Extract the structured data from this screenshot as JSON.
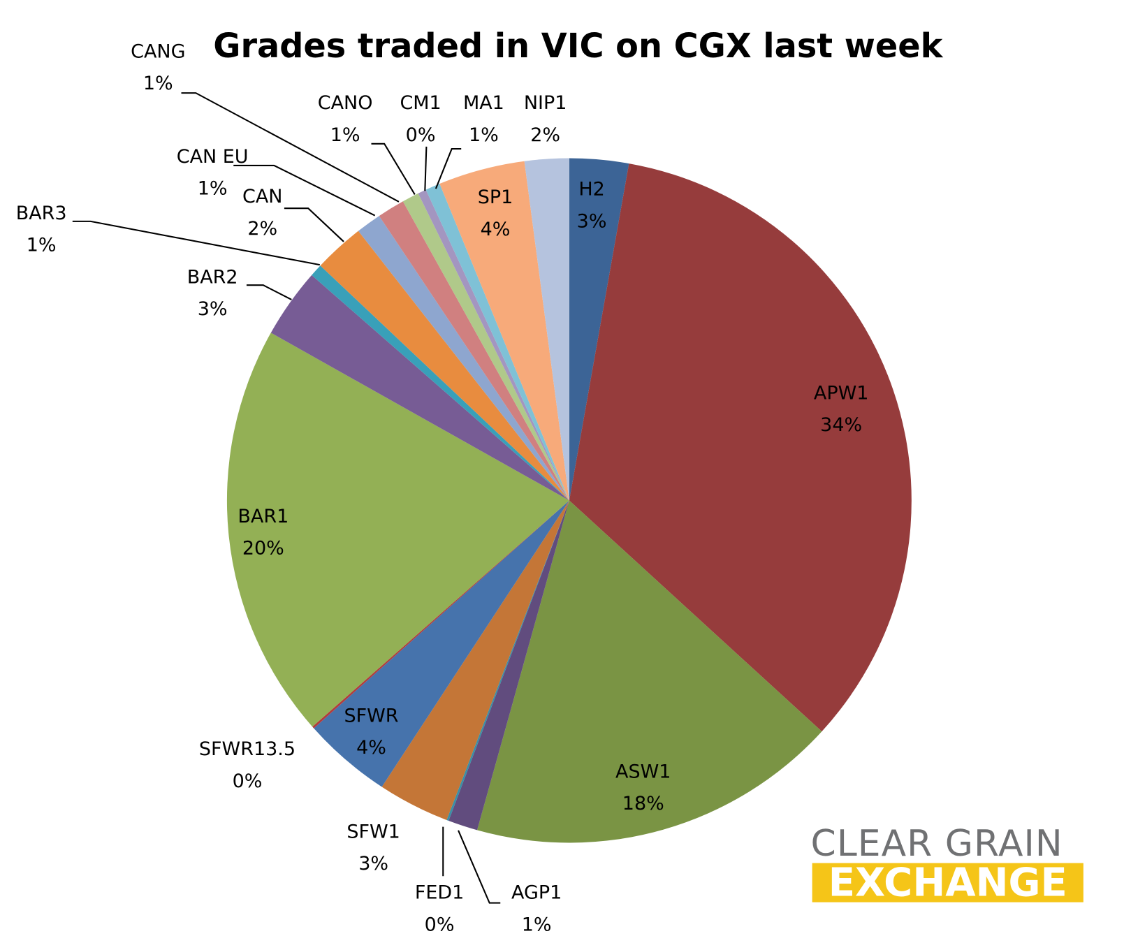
{
  "chart_data": {
    "type": "pie",
    "title": "Grades traded in VIC on CGX last week",
    "categories": [
      "H2",
      "APW1",
      "ASW1",
      "AGP1",
      "FED1",
      "SFW1",
      "SFWR",
      "SFWR13.5",
      "BAR1",
      "BAR2",
      "BAR3",
      "CAN",
      "CAN EU",
      "CANG",
      "CANO",
      "CM1",
      "MA1",
      "SP1",
      "NIP1"
    ],
    "values": [
      2.8,
      34.1,
      17.6,
      1.4,
      0.1,
      3.4,
      4.2,
      0.1,
      19.7,
      3.3,
      0.6,
      2.4,
      1.2,
      1.3,
      0.8,
      0.4,
      0.7,
      4.1,
      2.1
    ],
    "value_labels": [
      "3%",
      "34%",
      "18%",
      "1%",
      "0%",
      "3%",
      "4%",
      "0%",
      "20%",
      "3%",
      "1%",
      "2%",
      "1%",
      "1%",
      "1%",
      "0%",
      "1%",
      "4%",
      "2%"
    ],
    "colors": [
      "#3c6496",
      "#963c3c",
      "#7a9444",
      "#614c7e",
      "#3a8fa6",
      "#c47637",
      "#4673ac",
      "#b33c3c",
      "#93b055",
      "#775c95",
      "#39a0b9",
      "#e88c3f",
      "#8ea6cf",
      "#d08080",
      "#b0c98a",
      "#a396c0",
      "#7fc1d6",
      "#f7aa7a",
      "#b5c3de"
    ]
  },
  "logo": {
    "line1": "CLEAR GRAIN",
    "line2": "EXCHANGE"
  }
}
